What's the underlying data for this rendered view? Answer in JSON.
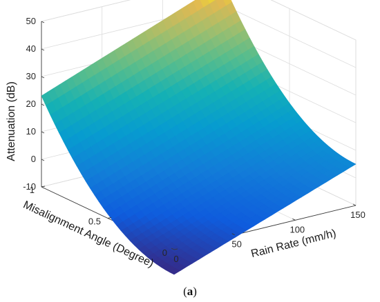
{
  "chart_data": {
    "type": "surface3d",
    "title": "",
    "colormap": "parula",
    "x_axis": {
      "label": "Rain Rate (mm/h)",
      "range": [
        0,
        150
      ],
      "ticks": [
        0,
        50,
        100,
        150
      ]
    },
    "y_axis": {
      "label": "Misalignment Angle (Degree)",
      "range": [
        0,
        1
      ],
      "ticks": [
        0,
        0.5,
        1
      ]
    },
    "z_axis": {
      "label": "Attenuation (dB)",
      "range": [
        -10,
        50
      ],
      "ticks": [
        -10,
        0,
        10,
        20,
        30,
        40,
        50
      ]
    },
    "grid": true,
    "surface_corners": [
      {
        "rain_rate": 0,
        "misalignment": 1,
        "attenuation": 23
      },
      {
        "rain_rate": 150,
        "misalignment": 1,
        "attenuation": 48
      },
      {
        "rain_rate": 150,
        "misalignment": 0,
        "attenuation": 5
      },
      {
        "rain_rate": 0,
        "misalignment": 0,
        "attenuation": -19
      }
    ]
  },
  "caption": {
    "open": "(",
    "letter": "a",
    "close": ")"
  }
}
